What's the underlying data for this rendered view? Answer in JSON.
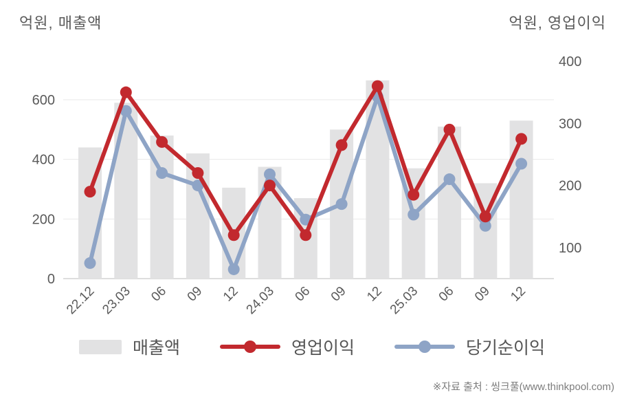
{
  "chart_data": {
    "type": "bar",
    "subtype": "bar-line-combo-dual-axis",
    "categories": [
      "22.12",
      "23.03",
      "06",
      "09",
      "12",
      "24.03",
      "06",
      "09",
      "12",
      "25.03",
      "06",
      "09",
      "12"
    ],
    "series": [
      {
        "name": "매출액",
        "type": "bar",
        "axis": "left",
        "color": "#e2e2e3",
        "values": [
          440,
          590,
          480,
          420,
          305,
          375,
          270,
          500,
          665,
          370,
          510,
          320,
          530
        ]
      },
      {
        "name": "영업이익",
        "type": "line",
        "axis": "right",
        "color": "#c2292e",
        "values": [
          190,
          350,
          270,
          220,
          120,
          200,
          120,
          265,
          360,
          185,
          290,
          150,
          275
        ]
      },
      {
        "name": "당기순이익",
        "type": "line",
        "axis": "right",
        "color": "#8ea4c6",
        "values": [
          75,
          320,
          220,
          200,
          65,
          218,
          145,
          170,
          343,
          153,
          210,
          135,
          235
        ]
      }
    ],
    "left_axis": {
      "title": "억원, 매출액",
      "ticks": [
        0,
        200,
        400,
        600
      ],
      "range": [
        0,
        750
      ],
      "unit": "억원"
    },
    "right_axis": {
      "title": "억원, 영업이익",
      "ticks": [
        100,
        200,
        300,
        400
      ],
      "range": [
        50,
        410
      ],
      "unit": "억원"
    },
    "grid": true,
    "legend_position": "bottom"
  },
  "legend": {
    "items": [
      {
        "label": "매출액",
        "marker": "bar",
        "color": "#e2e2e3"
      },
      {
        "label": "영업이익",
        "marker": "line-dot",
        "color": "#c2292e"
      },
      {
        "label": "당기순이익",
        "marker": "line-dot",
        "color": "#8ea4c6"
      }
    ]
  },
  "footer": {
    "source_note": "※자료 출처 : 씽크풀(www.thinkpool.com)"
  },
  "colors": {
    "grid": "#e9e9e9",
    "baseline": "#d2d2d2",
    "axis_text": "#5a5a5a",
    "legend_text": "#555555",
    "footer_text": "#7d7d7d"
  }
}
